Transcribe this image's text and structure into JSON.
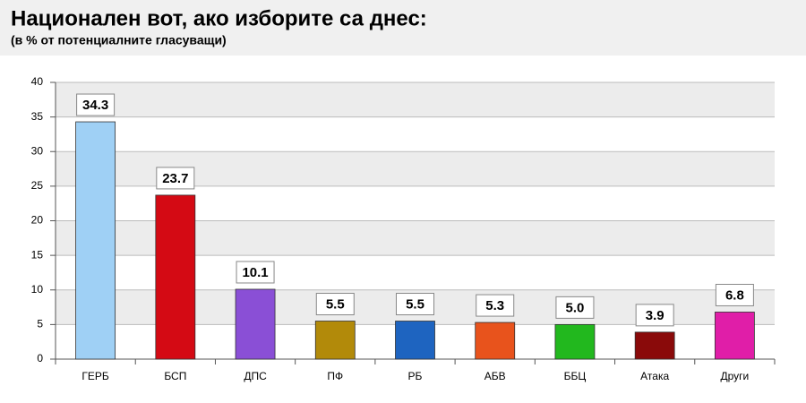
{
  "chart_data": {
    "type": "bar",
    "title": "Национален вот, ако изборите са днес:",
    "subtitle": "(в % от потенциалните гласуващи)",
    "categories": [
      "ГЕРБ",
      "БСП",
      "ДПС",
      "ПФ",
      "РБ",
      "АБВ",
      "ББЦ",
      "Атака",
      "Други"
    ],
    "values": [
      34.3,
      23.7,
      10.1,
      5.5,
      5.5,
      5.3,
      5.0,
      3.9,
      6.8
    ],
    "value_labels": [
      "34.3",
      "23.7",
      "10.1",
      "5.5",
      "5.5",
      "5.3",
      "5.0",
      "3.9",
      "6.8"
    ],
    "colors": [
      "#9fd0f5",
      "#d40a14",
      "#8a4fd6",
      "#b28a0a",
      "#1e64c0",
      "#e8531c",
      "#22b81e",
      "#8a0a0a",
      "#e01ea8"
    ],
    "ylim": [
      0,
      40
    ],
    "yticks": [
      0,
      5,
      10,
      15,
      20,
      25,
      30,
      35,
      40
    ],
    "grid": true
  }
}
